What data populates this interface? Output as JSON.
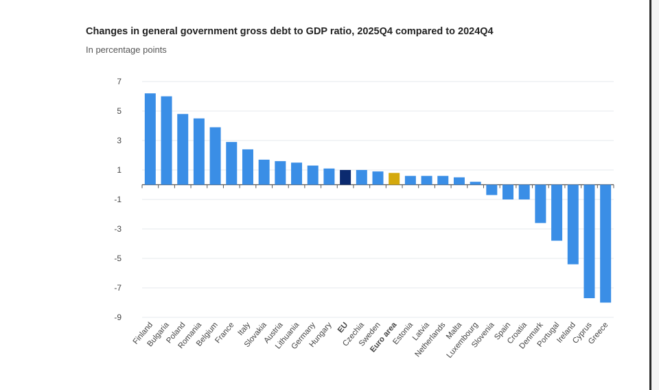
{
  "chart_data": {
    "type": "bar",
    "title": "Changes in general government gross debt to GDP ratio, 2025Q4 compared to 2024Q4",
    "subtitle": "In percentage points",
    "xlabel": "",
    "ylabel": "",
    "ylim": [
      -9,
      7
    ],
    "yticks": [
      7,
      5,
      3,
      1,
      -1,
      -3,
      -5,
      -7,
      -9
    ],
    "grid": true,
    "categories": [
      "Finland",
      "Bulgaria",
      "Poland",
      "Romania",
      "Belgium",
      "France",
      "Italy",
      "Slovakia",
      "Austria",
      "Lithuania",
      "Germany",
      "Hungary",
      "EU",
      "Czechia",
      "Sweden",
      "Euro area",
      "Estonia",
      "Latvia",
      "Netherlands",
      "Malta",
      "Luxembourg",
      "Slovenia",
      "Spain",
      "Croatia",
      "Denmark",
      "Portugal",
      "Ireland",
      "Cyprus",
      "Greece"
    ],
    "values": [
      6.2,
      6.0,
      4.8,
      4.5,
      3.9,
      2.9,
      2.4,
      1.7,
      1.6,
      1.5,
      1.3,
      1.1,
      1.0,
      1.0,
      0.9,
      0.8,
      0.6,
      0.6,
      0.6,
      0.5,
      0.2,
      -0.7,
      -1.0,
      -1.0,
      -2.6,
      -3.8,
      -5.4,
      -7.7,
      -8.0
    ],
    "bold_categories": [
      "EU",
      "Euro area"
    ],
    "colors": {
      "default": "#3a8ee6",
      "EU": "#0b2a6f",
      "Euro area": "#d4a90c"
    }
  }
}
